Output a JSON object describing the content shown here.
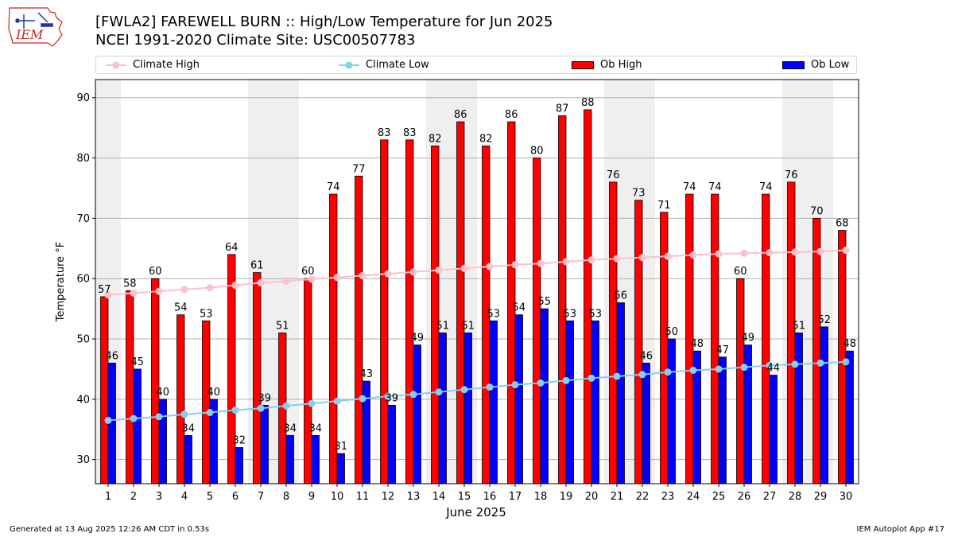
{
  "title_line1": "[FWLA2] FAREWELL BURN :: High/Low Temperature for Jun 2025",
  "title_line2": "NCEI 1991-2020 Climate Site: USC00507783",
  "logo_text": "IEM",
  "footer_left": "Generated at 13 Aug 2025 12:26 AM CDT in 0.53s",
  "footer_right": "IEM Autoplot App #17",
  "colors": {
    "ob_high": "#ff0000",
    "ob_low": "#0000ff",
    "climate_high": "#ffc0cb",
    "climate_low": "#87ceeb",
    "weekend_shade": "#efefef",
    "grid": "#b0b0b0",
    "logo": "#cc2222"
  },
  "chart_data": {
    "type": "bar",
    "xlabel": "June 2025",
    "ylabel": "Temperature °F",
    "ylim": [
      26,
      93
    ],
    "yticks": [
      30,
      40,
      50,
      60,
      70,
      80,
      90
    ],
    "grid": "horizontal",
    "legend_position": "top",
    "categories": [
      "1",
      "2",
      "3",
      "4",
      "5",
      "6",
      "7",
      "8",
      "9",
      "10",
      "11",
      "12",
      "13",
      "14",
      "15",
      "16",
      "17",
      "18",
      "19",
      "20",
      "21",
      "22",
      "23",
      "24",
      "25",
      "26",
      "27",
      "28",
      "29",
      "30"
    ],
    "weekend_days": [
      1,
      7,
      8,
      14,
      15,
      21,
      22,
      28,
      29
    ],
    "series": [
      {
        "name": "Ob High",
        "kind": "bar",
        "values": [
          57,
          58,
          60,
          54,
          53,
          64,
          61,
          51,
          60,
          74,
          77,
          83,
          83,
          82,
          86,
          82,
          86,
          80,
          87,
          88,
          76,
          73,
          71,
          74,
          74,
          60,
          74,
          76,
          70,
          68
        ]
      },
      {
        "name": "Ob Low",
        "kind": "bar",
        "values": [
          46,
          45,
          40,
          34,
          40,
          32,
          39,
          34,
          34,
          31,
          43,
          39,
          49,
          51,
          51,
          53,
          54,
          55,
          53,
          53,
          56,
          46,
          50,
          48,
          47,
          49,
          44,
          51,
          52,
          48
        ]
      },
      {
        "name": "Climate High",
        "kind": "line",
        "values": [
          57.3,
          57.6,
          57.9,
          58.2,
          58.5,
          58.9,
          59.3,
          59.6,
          59.9,
          60.2,
          60.5,
          60.8,
          61.1,
          61.4,
          61.7,
          62.0,
          62.3,
          62.5,
          62.8,
          63.1,
          63.3,
          63.5,
          63.7,
          63.9,
          64.1,
          64.2,
          64.3,
          64.4,
          64.5,
          64.7
        ]
      },
      {
        "name": "Climate Low",
        "kind": "line",
        "values": [
          36.5,
          36.8,
          37.1,
          37.5,
          37.8,
          38.2,
          38.5,
          38.9,
          39.3,
          39.7,
          40.1,
          40.5,
          40.8,
          41.2,
          41.6,
          42.0,
          42.4,
          42.7,
          43.1,
          43.5,
          43.8,
          44.1,
          44.5,
          44.8,
          45.0,
          45.3,
          45.6,
          45.8,
          46.0,
          46.2
        ]
      }
    ]
  }
}
